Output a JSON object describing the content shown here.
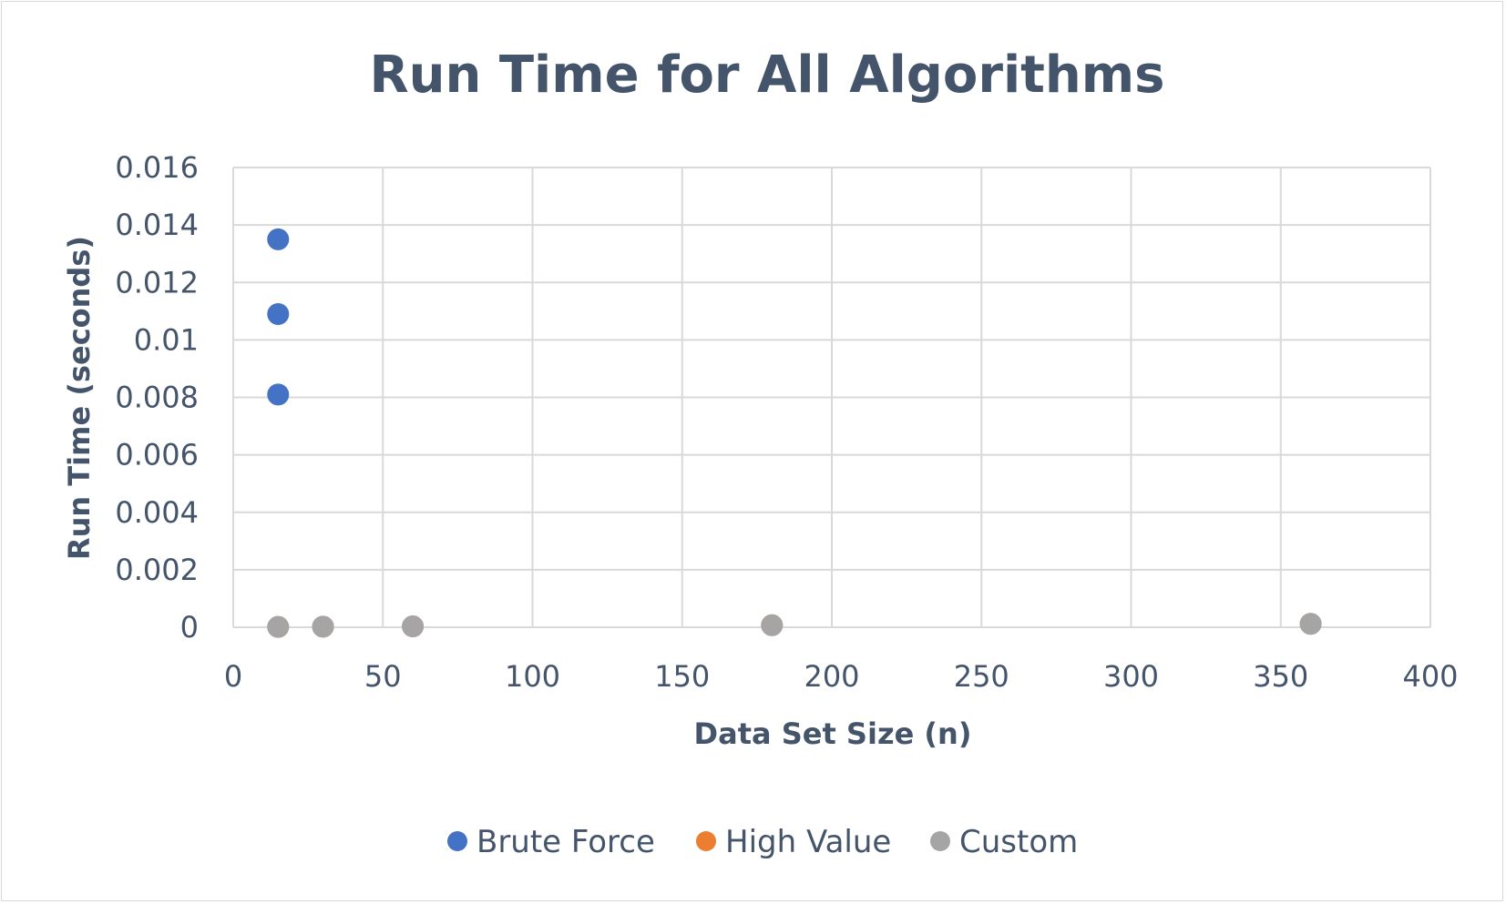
{
  "chart_data": {
    "type": "scatter",
    "title": "Run Time for All Algorithms",
    "xlabel": "Data Set Size (n)",
    "ylabel": "Run Time (seconds)",
    "xlim": [
      0,
      400
    ],
    "ylim": [
      0,
      0.016
    ],
    "x_ticks": [
      "0",
      "50",
      "100",
      "150",
      "200",
      "250",
      "300",
      "350",
      "400"
    ],
    "y_ticks": [
      "0",
      "0.002",
      "0.004",
      "0.006",
      "0.008",
      "0.01",
      "0.012",
      "0.014",
      "0.016"
    ],
    "grid": true,
    "legend_position": "bottom",
    "series": [
      {
        "name": "Brute Force",
        "color": "#4472c4",
        "points": [
          [
            15,
            0.0081
          ],
          [
            15,
            0.0109
          ],
          [
            15,
            0.0135
          ]
        ]
      },
      {
        "name": "High Value",
        "color": "#ed7d31",
        "points": [
          [
            15,
            1e-05
          ],
          [
            30,
            2e-05
          ],
          [
            60,
            3e-05
          ],
          [
            180,
            7e-05
          ],
          [
            360,
            0.00012
          ]
        ]
      },
      {
        "name": "Custom",
        "color": "#a5a5a5",
        "points": [
          [
            15,
            1e-05
          ],
          [
            30,
            2e-05
          ],
          [
            60,
            3e-05
          ],
          [
            180,
            7e-05
          ],
          [
            360,
            0.00012
          ]
        ]
      }
    ]
  }
}
